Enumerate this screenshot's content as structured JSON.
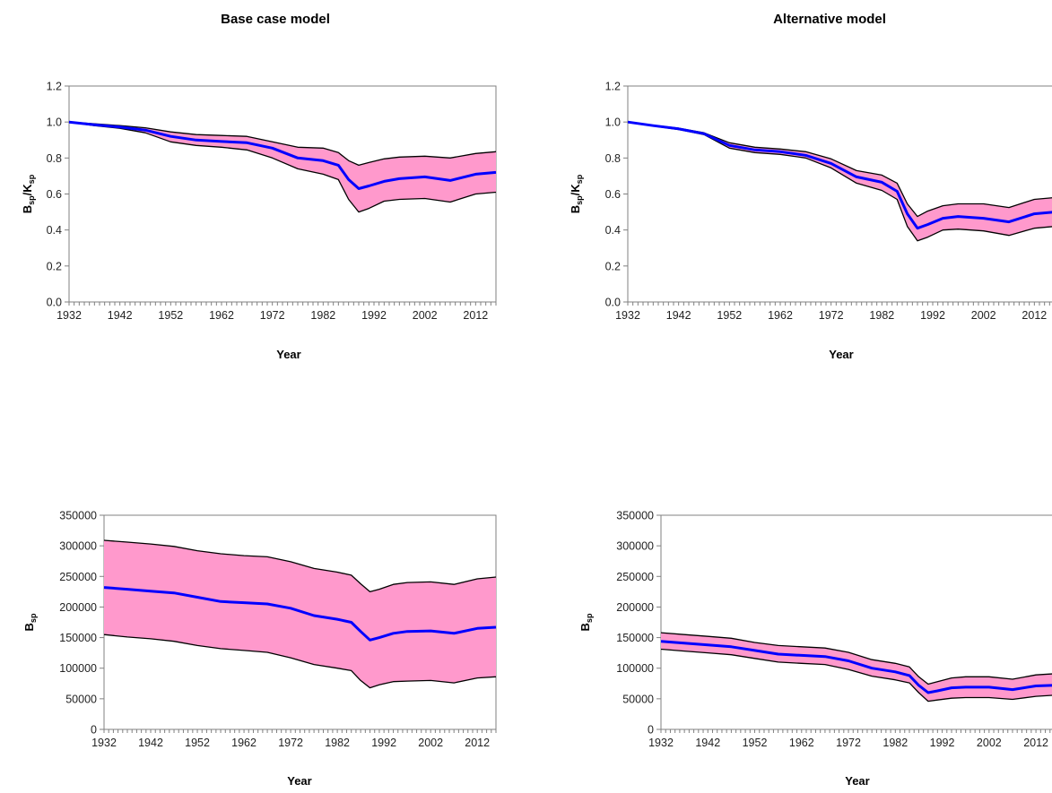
{
  "titles": {
    "left": "Base case model",
    "right": "Alternative model"
  },
  "colors": {
    "band": "#ff99cc",
    "median": "#0000ff",
    "bounds": "#000000",
    "axis": "#808080"
  },
  "chart_data": [
    {
      "id": "top-left",
      "type": "line",
      "title": "Base case model",
      "xlabel": "Year",
      "ylabel": {
        "main": "B",
        "sub1": "sp",
        "slash": "/K",
        "sub2": "sp"
      },
      "xlim": [
        1932,
        2016
      ],
      "ylim": [
        0,
        1.2
      ],
      "xticks": [
        1932,
        1942,
        1952,
        1962,
        1972,
        1982,
        1992,
        2002,
        2012
      ],
      "yticks": [
        0,
        0.2,
        0.4,
        0.6,
        0.8,
        1.0,
        1.2
      ],
      "ytick_labels": [
        "0.0",
        "0.2",
        "0.4",
        "0.6",
        "0.8",
        "1.0",
        "1.2"
      ],
      "x": [
        1932,
        1937,
        1942,
        1947,
        1952,
        1957,
        1962,
        1967,
        1972,
        1977,
        1982,
        1985,
        1987,
        1989,
        1991,
        1994,
        1997,
        2002,
        2007,
        2012,
        2016
      ],
      "median": [
        1.0,
        0.985,
        0.972,
        0.955,
        0.92,
        0.9,
        0.892,
        0.885,
        0.855,
        0.8,
        0.785,
        0.76,
        0.68,
        0.63,
        0.645,
        0.67,
        0.685,
        0.695,
        0.675,
        0.71,
        0.72
      ],
      "lower": [
        1.0,
        0.98,
        0.965,
        0.94,
        0.89,
        0.87,
        0.86,
        0.845,
        0.8,
        0.74,
        0.71,
        0.68,
        0.57,
        0.5,
        0.52,
        0.56,
        0.57,
        0.575,
        0.555,
        0.6,
        0.61
      ],
      "upper": [
        1.0,
        0.99,
        0.98,
        0.968,
        0.945,
        0.93,
        0.925,
        0.92,
        0.89,
        0.86,
        0.855,
        0.83,
        0.785,
        0.76,
        0.775,
        0.795,
        0.805,
        0.81,
        0.8,
        0.825,
        0.835
      ]
    },
    {
      "id": "top-right",
      "type": "line",
      "title": "Alternative model",
      "xlabel": "Year",
      "ylabel": {
        "main": "B",
        "sub1": "sp",
        "slash": "/K",
        "sub2": "sp"
      },
      "xlim": [
        1932,
        2016
      ],
      "ylim": [
        0,
        1.2
      ],
      "xticks": [
        1932,
        1942,
        1952,
        1962,
        1972,
        1982,
        1992,
        2002,
        2012
      ],
      "yticks": [
        0,
        0.2,
        0.4,
        0.6,
        0.8,
        1.0,
        1.2
      ],
      "ytick_labels": [
        "0.0",
        "0.2",
        "0.4",
        "0.6",
        "0.8",
        "1.0",
        "1.2"
      ],
      "x": [
        1932,
        1937,
        1942,
        1947,
        1952,
        1957,
        1962,
        1967,
        1972,
        1977,
        1982,
        1985,
        1987,
        1989,
        1991,
        1994,
        1997,
        2002,
        2007,
        2012,
        2016
      ],
      "median": [
        1.0,
        0.98,
        0.962,
        0.935,
        0.87,
        0.845,
        0.835,
        0.815,
        0.77,
        0.695,
        0.665,
        0.615,
        0.49,
        0.41,
        0.43,
        0.465,
        0.475,
        0.465,
        0.445,
        0.49,
        0.5
      ],
      "lower": [
        1.0,
        0.978,
        0.958,
        0.93,
        0.855,
        0.83,
        0.82,
        0.8,
        0.745,
        0.66,
        0.62,
        0.57,
        0.42,
        0.34,
        0.36,
        0.4,
        0.405,
        0.395,
        0.37,
        0.41,
        0.42
      ],
      "upper": [
        1.0,
        0.982,
        0.966,
        0.94,
        0.885,
        0.86,
        0.85,
        0.835,
        0.795,
        0.73,
        0.705,
        0.66,
        0.545,
        0.475,
        0.505,
        0.535,
        0.545,
        0.545,
        0.525,
        0.57,
        0.58
      ]
    },
    {
      "id": "bottom-left",
      "type": "line",
      "xlabel": "Year",
      "ylabel": {
        "main": "B",
        "sub1": "sp"
      },
      "xlim": [
        1932,
        2016
      ],
      "ylim": [
        0,
        350000
      ],
      "xticks": [
        1932,
        1942,
        1952,
        1962,
        1972,
        1982,
        1992,
        2002,
        2012
      ],
      "yticks": [
        0,
        50000,
        100000,
        150000,
        200000,
        250000,
        300000,
        350000
      ],
      "ytick_labels": [
        "0",
        "50000",
        "100000",
        "150000",
        "200000",
        "250000",
        "300000",
        "350000"
      ],
      "x": [
        1932,
        1937,
        1942,
        1947,
        1952,
        1957,
        1962,
        1967,
        1972,
        1977,
        1982,
        1985,
        1987,
        1989,
        1991,
        1994,
        1997,
        2002,
        2007,
        2012,
        2016
      ],
      "median": [
        232000,
        229000,
        226000,
        223000,
        216000,
        209000,
        207000,
        205000,
        198000,
        186000,
        180000,
        175000,
        160000,
        146000,
        150000,
        157000,
        160000,
        161000,
        157000,
        165000,
        167000
      ],
      "lower": [
        155000,
        151000,
        148000,
        144000,
        137000,
        132000,
        129000,
        126000,
        117000,
        106000,
        100000,
        96000,
        80000,
        68000,
        73000,
        78000,
        79000,
        80000,
        76000,
        84000,
        86000
      ],
      "upper": [
        309000,
        306000,
        303000,
        299000,
        292000,
        287000,
        284000,
        282000,
        274000,
        263000,
        257000,
        252000,
        238000,
        225000,
        229000,
        237000,
        240000,
        241000,
        237000,
        246000,
        249000
      ]
    },
    {
      "id": "bottom-right",
      "type": "line",
      "xlabel": "Year",
      "ylabel": {
        "main": "B",
        "sub1": "sp"
      },
      "xlim": [
        1932,
        2016
      ],
      "ylim": [
        0,
        350000
      ],
      "xticks": [
        1932,
        1942,
        1952,
        1962,
        1972,
        1982,
        1992,
        2002,
        2012
      ],
      "yticks": [
        0,
        50000,
        100000,
        150000,
        200000,
        250000,
        300000,
        350000
      ],
      "ytick_labels": [
        "0",
        "50000",
        "100000",
        "150000",
        "200000",
        "250000",
        "300000",
        "350000"
      ],
      "x": [
        1932,
        1937,
        1942,
        1947,
        1952,
        1957,
        1962,
        1967,
        1972,
        1977,
        1982,
        1985,
        1987,
        1989,
        1991,
        1994,
        1997,
        2002,
        2007,
        2012,
        2016
      ],
      "median": [
        144000,
        141000,
        138000,
        135000,
        129000,
        123000,
        121000,
        119000,
        112000,
        100000,
        94000,
        88000,
        72000,
        60000,
        63000,
        68000,
        69000,
        69000,
        65000,
        71000,
        72000
      ],
      "lower": [
        131000,
        128000,
        125000,
        122000,
        116000,
        110000,
        108000,
        106000,
        98000,
        87000,
        81000,
        76000,
        60000,
        46000,
        48000,
        51000,
        52000,
        52000,
        49000,
        54000,
        56000
      ],
      "upper": [
        158000,
        155000,
        152000,
        149000,
        142000,
        137000,
        135000,
        133000,
        126000,
        114000,
        108000,
        102000,
        86000,
        74000,
        78000,
        84000,
        86000,
        86000,
        82000,
        89000,
        91000
      ]
    }
  ]
}
